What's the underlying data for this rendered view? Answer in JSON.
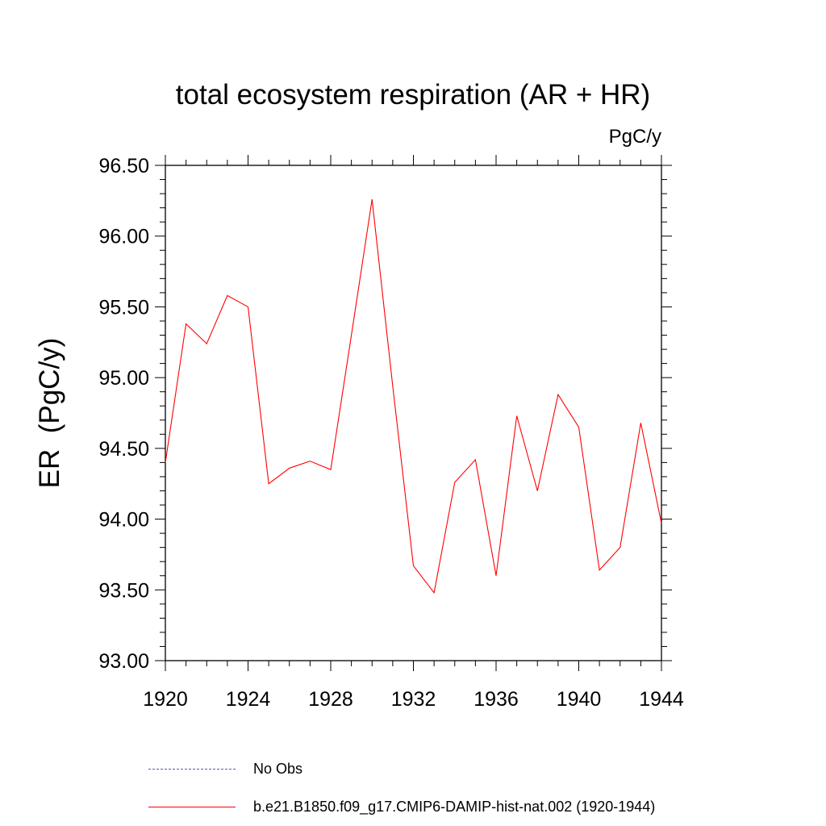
{
  "chart_data": {
    "type": "line",
    "title": "total ecosystem respiration (AR + HR)",
    "units": "PgC/y",
    "ylabel": "ER  (PgC/y)",
    "xlabel": "",
    "xlim": [
      1920,
      1944
    ],
    "ylim": [
      93.0,
      96.5
    ],
    "xticks": [
      1920,
      1924,
      1928,
      1932,
      1936,
      1940,
      1944
    ],
    "yticks": [
      "93.00",
      "93.50",
      "94.00",
      "94.50",
      "95.00",
      "95.50",
      "96.00",
      "96.50"
    ],
    "grid": false,
    "series": [
      {
        "name": "b.e21.B1850.f09_g17.CMIP6-DAMIP-hist-nat.002 (1920-1944)",
        "color": "#ff0000",
        "style": "solid",
        "x": [
          1920,
          1921,
          1922,
          1923,
          1924,
          1925,
          1926,
          1927,
          1928,
          1929,
          1930,
          1931,
          1932,
          1933,
          1934,
          1935,
          1936,
          1937,
          1938,
          1939,
          1940,
          1941,
          1942,
          1943,
          1944
        ],
        "y": [
          94.4,
          95.38,
          95.24,
          95.58,
          95.5,
          94.25,
          94.36,
          94.41,
          94.35,
          95.3,
          96.26,
          94.94,
          93.67,
          93.48,
          94.26,
          94.42,
          93.6,
          94.73,
          94.2,
          94.88,
          94.65,
          93.64,
          93.8,
          94.68,
          93.97
        ]
      }
    ]
  },
  "legend": [
    {
      "label": "No Obs",
      "color": "#5a5ab4",
      "style": "dashed"
    },
    {
      "label": "b.e21.B1850.f09_g17.CMIP6-DAMIP-hist-nat.002 (1920-1944)",
      "color": "#ff0000",
      "style": "solid"
    }
  ]
}
